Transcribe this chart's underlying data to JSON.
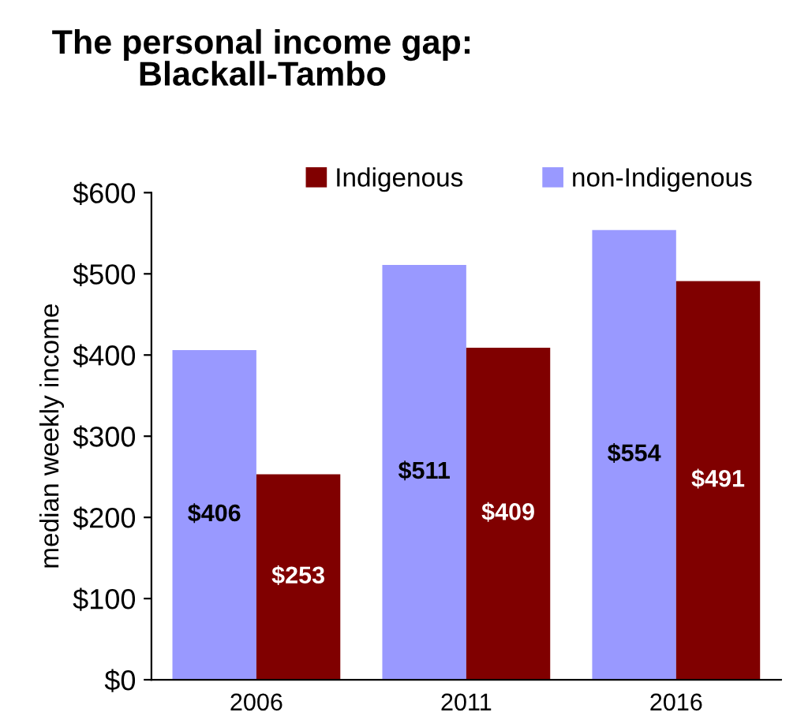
{
  "chart_data": {
    "type": "bar",
    "title": "The personal income gap:\nBlackall-Tambo",
    "ylabel": "median weekly income",
    "categories": [
      "2006",
      "2011",
      "2016"
    ],
    "series": [
      {
        "name": "non-Indigenous",
        "color": "#9999ff",
        "values": [
          406,
          511,
          554
        ],
        "value_labels": [
          "$406",
          "$511",
          "$554"
        ]
      },
      {
        "name": "Indigenous",
        "color": "#800000",
        "values": [
          253,
          409,
          491
        ],
        "value_labels": [
          "$253",
          "$409",
          "$491"
        ]
      }
    ],
    "ylim": [
      0,
      600
    ],
    "yticks": [
      {
        "value": 0,
        "label": "$0"
      },
      {
        "value": 100,
        "label": "$100"
      },
      {
        "value": 200,
        "label": "$200"
      },
      {
        "value": 300,
        "label": "$300"
      },
      {
        "value": 400,
        "label": "$400"
      },
      {
        "value": 500,
        "label": "$500"
      },
      {
        "value": 600,
        "label": "$600"
      }
    ],
    "legend": "top",
    "grid": false
  }
}
